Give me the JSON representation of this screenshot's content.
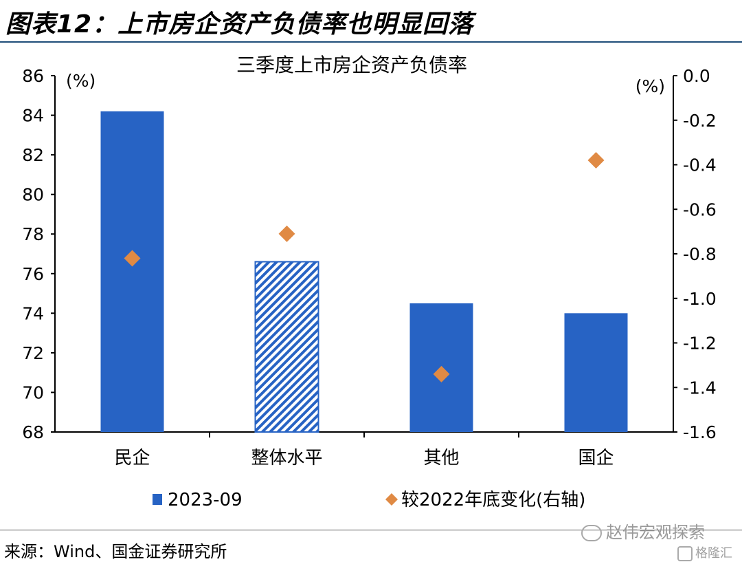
{
  "figure_title": "图表12：上市房企资产负债率也明显回落",
  "source_note": "来源：Wind、国金证券研究所",
  "watermark": "赵伟宏观探索",
  "watermark_brand": "格隆汇",
  "colors": {
    "bar": "#2763c4",
    "marker": "#e08a44",
    "rule": "#1f4e79",
    "hatch_fg": "#2763c4",
    "hatch_bg": "#ffffff"
  },
  "chart_data": {
    "type": "bar",
    "title": "三季度上市房企资产负债率",
    "categories": [
      "民企",
      "整体水平",
      "其他",
      "国企"
    ],
    "y_left": {
      "unit_label": "(%)",
      "ylim": [
        68,
        86
      ],
      "ticks": [
        "68",
        "70",
        "72",
        "74",
        "76",
        "78",
        "80",
        "82",
        "84",
        "86"
      ]
    },
    "y_right": {
      "unit_label": "(%)",
      "ylim": [
        -1.6,
        0.0
      ],
      "ticks": [
        "0.0",
        "-0.2",
        "-0.4",
        "-0.6",
        "-0.8",
        "-1.0",
        "-1.2",
        "-1.4",
        "-1.6"
      ]
    },
    "series": [
      {
        "name": "2023-09",
        "type": "bar",
        "axis": "left",
        "values": [
          84.2,
          76.6,
          74.5,
          74.0
        ],
        "hatched_index": 1
      },
      {
        "name": "较2022年底变化(右轴)",
        "type": "scatter",
        "marker": "diamond",
        "axis": "right",
        "values": [
          -0.82,
          -0.71,
          -1.34,
          -0.38
        ]
      }
    ],
    "legend_position": "bottom",
    "grid": false
  }
}
